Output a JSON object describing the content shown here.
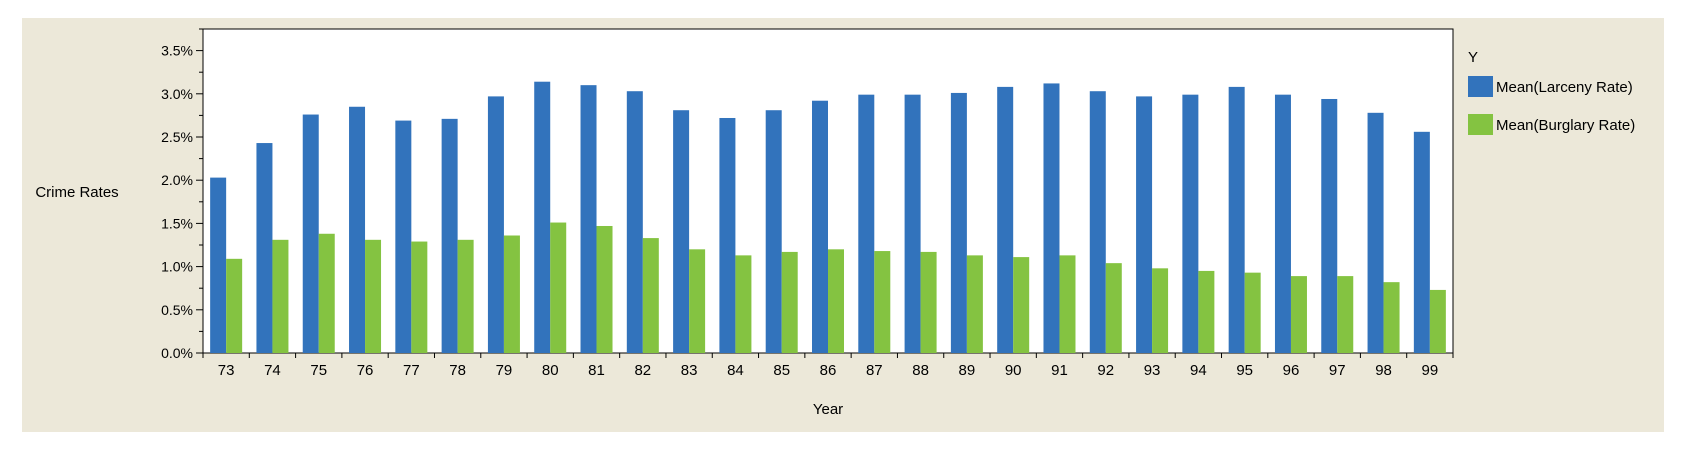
{
  "chart_data": {
    "type": "bar",
    "title": "",
    "xlabel": "Year",
    "ylabel": "Crime Rates",
    "ylim": [
      0,
      0.0375
    ],
    "ytick_values": [
      0,
      0.005,
      0.01,
      0.015,
      0.02,
      0.025,
      0.03,
      0.035
    ],
    "ytick_labels": [
      "0.0%",
      "0.5%",
      "1.0%",
      "1.5%",
      "2.0%",
      "2.5%",
      "3.0%",
      "3.5%"
    ],
    "categories": [
      "73",
      "74",
      "75",
      "76",
      "77",
      "78",
      "79",
      "80",
      "81",
      "82",
      "83",
      "84",
      "85",
      "86",
      "87",
      "88",
      "89",
      "90",
      "91",
      "92",
      "93",
      "94",
      "95",
      "96",
      "97",
      "98",
      "99"
    ],
    "legend_title": "Y",
    "legend_position": "right",
    "grid": false,
    "series": [
      {
        "name": "Mean(Larceny Rate)",
        "color": "#3273bc",
        "values": [
          0.0203,
          0.0243,
          0.0276,
          0.0285,
          0.0269,
          0.0271,
          0.0297,
          0.0314,
          0.031,
          0.0303,
          0.0281,
          0.0272,
          0.0281,
          0.0292,
          0.0299,
          0.0299,
          0.0301,
          0.0308,
          0.0312,
          0.0303,
          0.0297,
          0.0299,
          0.0308,
          0.0299,
          0.0294,
          0.0278,
          0.0256
        ]
      },
      {
        "name": "Mean(Burglary Rate)",
        "color": "#84c341",
        "values": [
          0.0109,
          0.0131,
          0.0138,
          0.0131,
          0.0129,
          0.0131,
          0.0136,
          0.0151,
          0.0147,
          0.0133,
          0.012,
          0.0113,
          0.0117,
          0.012,
          0.0118,
          0.0117,
          0.0113,
          0.0111,
          0.0113,
          0.0104,
          0.0098,
          0.0095,
          0.0093,
          0.0089,
          0.0089,
          0.0082,
          0.0073
        ]
      }
    ]
  }
}
